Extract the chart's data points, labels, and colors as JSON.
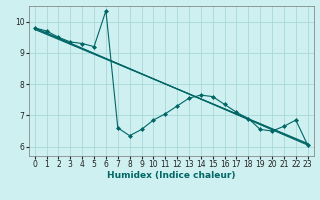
{
  "xlabel": "Humidex (Indice chaleur)",
  "bg_color": "#cff0f0",
  "grid_color": "#aad8d8",
  "line_color": "#006666",
  "xlim": [
    -0.5,
    23.5
  ],
  "ylim": [
    5.7,
    10.5
  ],
  "xticks": [
    0,
    1,
    2,
    3,
    4,
    5,
    6,
    7,
    8,
    9,
    10,
    11,
    12,
    13,
    14,
    15,
    16,
    17,
    18,
    19,
    20,
    21,
    22,
    23
  ],
  "yticks": [
    6,
    7,
    8,
    9,
    10
  ],
  "regression_lines": [
    {
      "x0": 0,
      "y0": 9.8,
      "x1": 23,
      "y1": 6.05
    },
    {
      "x0": 0,
      "y0": 9.75,
      "x1": 23,
      "y1": 6.1
    },
    {
      "x0": 0,
      "y0": 9.78,
      "x1": 23,
      "y1": 6.08
    }
  ],
  "jagged_x": [
    0,
    1,
    2,
    3,
    4,
    5,
    6,
    7,
    8,
    9,
    10,
    11,
    12,
    13,
    14,
    15,
    16,
    17,
    18,
    19,
    20,
    21,
    22,
    23
  ],
  "jagged_y": [
    9.8,
    9.7,
    9.5,
    9.35,
    9.3,
    9.2,
    10.35,
    6.6,
    6.35,
    6.55,
    6.85,
    7.05,
    7.3,
    7.55,
    7.65,
    7.6,
    7.35,
    7.1,
    6.9,
    6.55,
    6.5,
    6.65,
    6.85,
    6.05
  ]
}
